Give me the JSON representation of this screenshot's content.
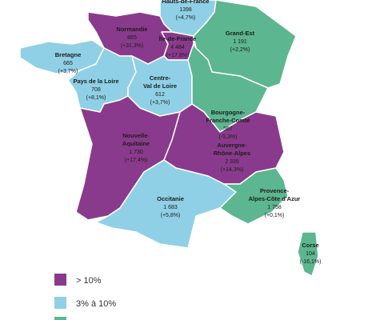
{
  "regions": [
    {
      "name_lines": [
        "Hauts-de-France"
      ],
      "value": "1398",
      "change": "(+4,7%)"
    },
    {
      "name_lines": [
        "Normandie"
      ],
      "value": "865",
      "change": "(+31,3%)"
    },
    {
      "name_lines": [
        "Île-de-France"
      ],
      "value": "4 484",
      "change": "(+17,8%)"
    },
    {
      "name_lines": [
        "Grand-Est"
      ],
      "value": "1 191",
      "change": "(+2,2%)"
    },
    {
      "name_lines": [
        "Bretagne"
      ],
      "value": "665",
      "change": "(+3,7%)"
    },
    {
      "name_lines": [
        "Pays de la Loire"
      ],
      "value": "708",
      "change": "(+8,1%)"
    },
    {
      "name_lines": [
        "Centre-",
        "Val de Loire"
      ],
      "value": "612",
      "change": "(+3,7%)"
    },
    {
      "name_lines": [
        "Bourgogne-",
        "Franche-Comté"
      ],
      "value": "557",
      "change": "(-5,3%)"
    },
    {
      "name_lines": [
        "Nouvelle-",
        "Aquitaine"
      ],
      "value": "1 730",
      "change": "(+17,4%)"
    },
    {
      "name_lines": [
        "Auvergne-",
        "Rhône-Alpes"
      ],
      "value": "2 335",
      "change": "(+14,3%)"
    },
    {
      "name_lines": [
        "Occitanie"
      ],
      "value": "1 683",
      "change": "(+5,8%)"
    },
    {
      "name_lines": [
        "Provence-",
        "Alpes-Côte d'Azur"
      ],
      "value": "1 758",
      "change": "(+0,1%)"
    },
    {
      "name_lines": [
        "Corse"
      ],
      "value": "104",
      "change": "(-16,1%)"
    }
  ],
  "legend": [
    {
      "label": "> 10%"
    },
    {
      "label": "3% à 10%"
    }
  ]
}
